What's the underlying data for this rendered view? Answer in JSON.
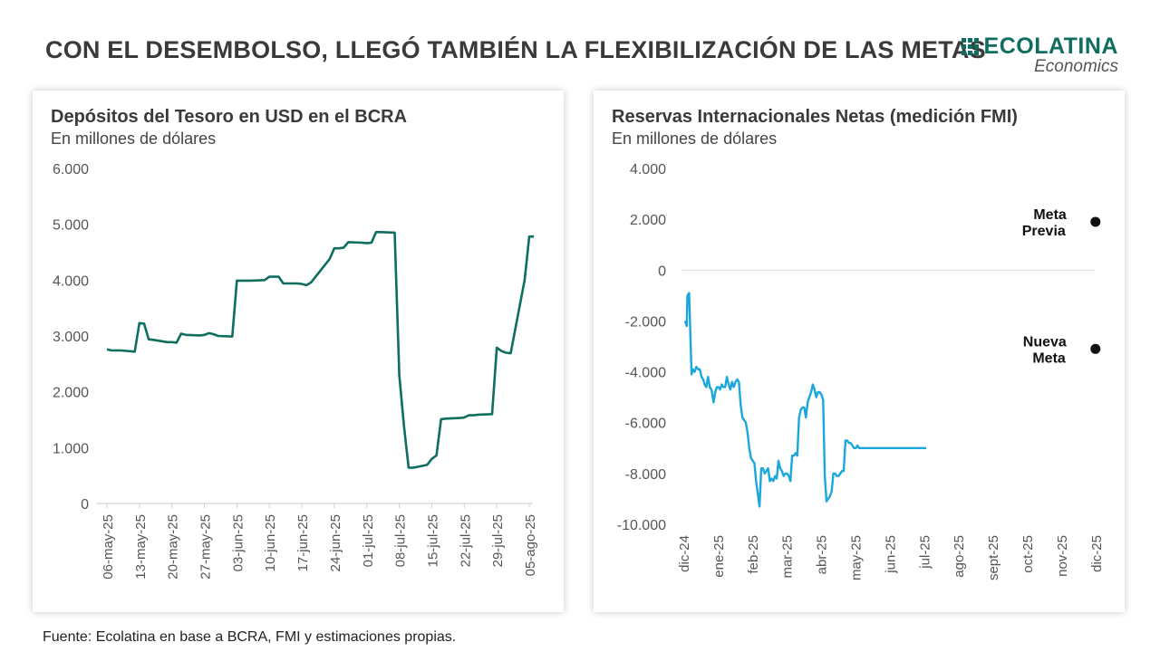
{
  "header": {
    "title": "CON EL DESEMBOLSO, LLEGÓ TAMBIÉN LA FLEXIBILIZACIÓN DE LAS METAS",
    "logo_name": "ECOLATINA",
    "logo_sub": "Economics"
  },
  "footer": {
    "source": "Fuente: Ecolatina en base a BCRA, FMI y estimaciones propias."
  },
  "colors": {
    "left_line": "#0f6e5f",
    "right_line": "#1aa7dc",
    "logo": "#0f6e5f"
  },
  "chart_data": [
    {
      "type": "line",
      "title": "Depósitos del Tesoro en USD en el BCRA",
      "subtitle": "En millones de dólares",
      "ylim": [
        0,
        6000
      ],
      "yticks": [
        0,
        1000,
        2000,
        3000,
        4000,
        5000,
        6000
      ],
      "ytick_labels": [
        "0",
        "1.000",
        "2.000",
        "3.000",
        "4.000",
        "5.000",
        "6.000"
      ],
      "xticks": [
        "2025-05-06",
        "2025-05-13",
        "2025-05-20",
        "2025-05-27",
        "2025-06-03",
        "2025-06-10",
        "2025-06-17",
        "2025-06-24",
        "2025-07-01",
        "2025-07-08",
        "2025-07-15",
        "2025-07-22",
        "2025-07-29",
        "2025-08-05"
      ],
      "xtick_labels": [
        "06-may-25",
        "13-may-25",
        "20-may-25",
        "27-may-25",
        "03-jun-25",
        "10-jun-25",
        "17-jun-25",
        "24-jun-25",
        "01-jul-25",
        "08-jul-25",
        "15-jul-25",
        "22-jul-25",
        "29-jul-25",
        "05-ago-25"
      ],
      "grid": false,
      "series": [
        {
          "x": [
            "2025-05-06",
            "2025-05-07",
            "2025-05-09",
            "2025-05-12",
            "2025-05-13",
            "2025-05-14",
            "2025-05-15",
            "2025-05-16",
            "2025-05-19",
            "2025-05-20",
            "2025-05-21",
            "2025-05-22",
            "2025-05-23",
            "2025-05-26",
            "2025-05-27",
            "2025-05-28",
            "2025-05-29",
            "2025-05-30",
            "2025-06-02",
            "2025-06-03",
            "2025-06-04",
            "2025-06-05",
            "2025-06-06",
            "2025-06-09",
            "2025-06-10",
            "2025-06-11",
            "2025-06-12",
            "2025-06-13",
            "2025-06-16",
            "2025-06-17",
            "2025-06-18",
            "2025-06-19",
            "2025-06-23",
            "2025-06-24",
            "2025-06-25",
            "2025-06-26",
            "2025-06-27",
            "2025-06-30",
            "2025-07-01",
            "2025-07-02",
            "2025-07-03",
            "2025-07-04",
            "2025-07-07",
            "2025-07-08",
            "2025-07-09",
            "2025-07-10",
            "2025-07-11",
            "2025-07-14",
            "2025-07-15",
            "2025-07-16",
            "2025-07-17",
            "2025-07-18",
            "2025-07-21",
            "2025-07-22",
            "2025-07-23",
            "2025-07-24",
            "2025-07-25",
            "2025-07-28",
            "2025-07-29",
            "2025-07-30",
            "2025-07-31",
            "2025-08-01",
            "2025-08-04",
            "2025-08-05",
            "2025-08-06"
          ],
          "y": [
            2760,
            2740,
            2740,
            2720,
            3230,
            3220,
            2940,
            2930,
            2890,
            2890,
            2880,
            3040,
            3020,
            3010,
            3020,
            3050,
            3030,
            3000,
            2990,
            3990,
            3990,
            3990,
            3990,
            4000,
            4060,
            4060,
            4060,
            3940,
            3940,
            3930,
            3910,
            3960,
            4380,
            4570,
            4570,
            4580,
            4680,
            4670,
            4660,
            4670,
            4860,
            4860,
            4850,
            2300,
            1400,
            640,
            640,
            690,
            800,
            860,
            1510,
            1520,
            1530,
            1540,
            1580,
            1580,
            1590,
            1600,
            2790,
            2730,
            2700,
            2690,
            4000,
            4780,
            4780
          ]
        }
      ]
    },
    {
      "type": "line",
      "title": "Reservas Internacionales Netas (medición FMI)",
      "subtitle": "En millones de dólares",
      "ylim": [
        -10000,
        4000
      ],
      "yticks": [
        -10000,
        -8000,
        -6000,
        -4000,
        -2000,
        0,
        2000,
        4000
      ],
      "ytick_labels": [
        "-10.000",
        "-8.000",
        "-6.000",
        "-4.000",
        "-2.000",
        "0",
        "2.000",
        "4.000"
      ],
      "xticks": [
        "dic-24",
        "ene-25",
        "feb-25",
        "mar-25",
        "abr-25",
        "may-25",
        "jun-25",
        "jul-25",
        "ago-25",
        "sept-25",
        "oct-25",
        "nov-25",
        "dic-25"
      ],
      "grid": "zero line only",
      "series": [
        {
          "x": [
            0.05,
            0.1,
            0.12,
            0.17,
            0.24,
            0.28,
            0.33,
            0.38,
            0.43,
            0.48,
            0.53,
            0.58,
            0.62,
            0.67,
            0.72,
            0.77,
            0.82,
            0.88,
            0.93,
            0.98,
            1.02,
            1.07,
            1.12,
            1.17,
            1.22,
            1.27,
            1.32,
            1.37,
            1.42,
            1.47,
            1.52,
            1.57,
            1.62,
            1.67,
            1.72,
            1.77,
            1.82,
            1.87,
            1.92,
            1.97,
            2.02,
            2.07,
            2.12,
            2.17,
            2.22,
            2.27,
            2.32,
            2.37,
            2.42,
            2.47,
            2.52,
            2.57,
            2.62,
            2.67,
            2.72,
            2.77,
            2.82,
            2.87,
            2.92,
            2.97,
            3.02,
            3.07,
            3.12,
            3.17,
            3.22,
            3.27,
            3.32,
            3.37,
            3.42,
            3.47,
            3.52,
            3.57,
            3.62,
            3.67,
            3.72,
            3.77,
            3.82,
            3.87,
            3.92,
            3.97,
            4.02,
            4.07,
            4.12,
            4.17,
            4.22,
            4.27,
            4.32,
            4.37,
            4.42,
            4.47,
            4.52,
            4.57,
            4.62,
            4.67,
            4.72,
            4.77,
            4.82,
            4.87,
            4.92,
            4.97,
            5.02,
            5.07,
            5.12,
            5.17,
            5.22,
            5.27,
            5.32,
            5.37,
            5.42,
            5.47,
            5.52,
            5.57,
            5.62,
            5.67,
            5.72,
            5.77,
            5.82,
            5.87,
            5.92,
            5.97,
            6.02,
            6.07,
            6.12,
            6.17,
            6.22,
            6.27,
            6.32,
            6.37,
            6.42,
            6.47,
            6.52,
            6.57,
            6.62,
            6.67,
            6.72,
            6.77,
            6.82,
            6.87,
            6.92,
            6.97,
            7.02,
            7.07,
            7.12
          ],
          "y": [
            -2000,
            -2200,
            -1000,
            -900,
            -4100,
            -3900,
            -4000,
            -3800,
            -3900,
            -3900,
            -4200,
            -4300,
            -4500,
            -4600,
            -4200,
            -4600,
            -4700,
            -5200,
            -4800,
            -4600,
            -4600,
            -4700,
            -4500,
            -4600,
            -4600,
            -4200,
            -4500,
            -4700,
            -4400,
            -4600,
            -4400,
            -4300,
            -4400,
            -5300,
            -5800,
            -5900,
            -6000,
            -6400,
            -7000,
            -7400,
            -7500,
            -7600,
            -8300,
            -8800,
            -9300,
            -7800,
            -7800,
            -8000,
            -7900,
            -7800,
            -8300,
            -8200,
            -8300,
            -8100,
            -8200,
            -7500,
            -7800,
            -7900,
            -8100,
            -8000,
            -8000,
            -8100,
            -8300,
            -7300,
            -7300,
            -7200,
            -7300,
            -5800,
            -5500,
            -5400,
            -5400,
            -5800,
            -5200,
            -5000,
            -4800,
            -4500,
            -4700,
            -5000,
            -4800,
            -4800,
            -4900,
            -5100,
            -8100,
            -9100,
            -9000,
            -8900,
            -8700,
            -8000,
            -8000,
            -8100,
            -8100,
            -8000,
            -7900,
            -7900,
            -6700,
            -6700,
            -6800,
            -6800,
            -6900,
            -7000,
            -7000,
            -6900,
            -7000,
            -7000,
            -7000,
            -7000,
            -7000,
            -7000,
            -7000,
            -7000,
            -7000,
            -7000,
            -7000,
            -7000,
            -7000,
            -7000,
            -7000,
            -7000,
            -7000,
            -7000,
            -7000,
            -7000,
            -7000,
            -7000,
            -7000,
            -7000,
            -7000,
            -7000,
            -7000,
            -7000,
            -7000,
            -7000,
            -7000,
            -7000,
            -7000,
            -7000,
            -7000,
            -7000,
            -7000,
            -7000,
            -7000,
            -7000,
            -7000
          ]
        }
      ],
      "annotations": [
        {
          "label": [
            "Meta",
            "Previa"
          ],
          "x": 12.0,
          "y": 1900
        },
        {
          "label": [
            "Nueva",
            "Meta"
          ],
          "x": 12.0,
          "y": -3100
        }
      ]
    }
  ]
}
